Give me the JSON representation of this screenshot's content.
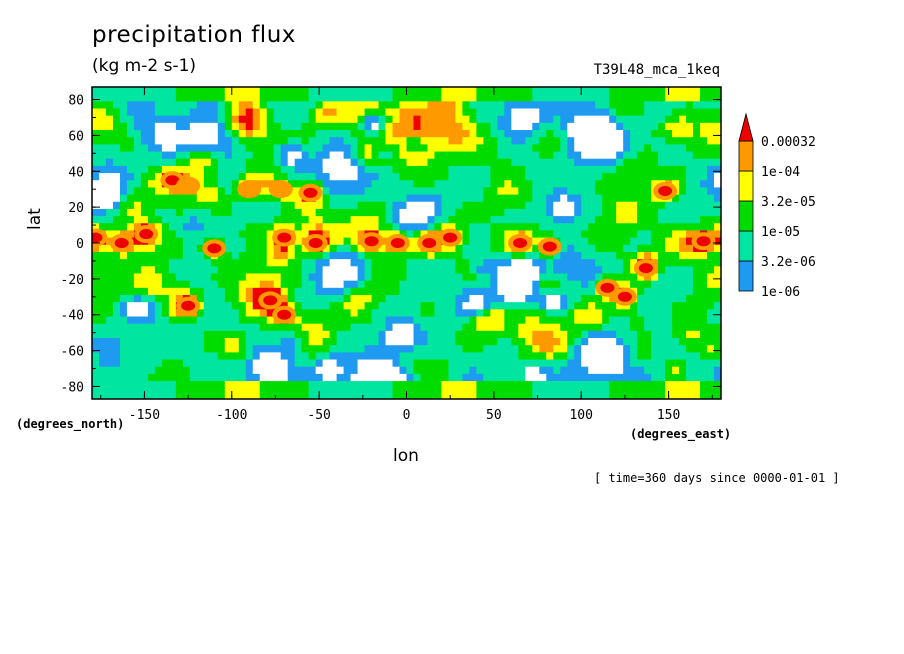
{
  "chart_data": {
    "type": "heatmap",
    "title": "precipitation flux",
    "subtitle": "(kg m-2 s-1)",
    "run_label": "T39L48_mca_1keq",
    "xlabel": "lon",
    "ylabel": "lat",
    "x_units": "(degrees_east)",
    "y_units": "(degrees_north)",
    "footnote": "[ time=360 days since 0000-01-01 ]",
    "xlim": [
      -180,
      180
    ],
    "ylim": [
      -87,
      87
    ],
    "x_ticks": [
      -150,
      -100,
      -50,
      0,
      50,
      100,
      150
    ],
    "x_tick_labels": [
      "-150",
      "-100",
      "-50",
      "0",
      "50",
      "100",
      "150"
    ],
    "y_ticks": [
      80,
      60,
      40,
      20,
      0,
      -20,
      -40,
      -60,
      -80
    ],
    "y_tick_labels": [
      "80",
      "60",
      "40",
      "20",
      "0",
      "-20",
      "-40",
      "-60",
      "-80"
    ],
    "legend": {
      "placement": "right",
      "levels": [
        "1e-06",
        "3.2e-06",
        "1e-05",
        "3.2e-05",
        "1e-04",
        "0.00032"
      ],
      "level_values": [
        1e-06,
        3.2e-06,
        1e-05,
        3.2e-05,
        0.0001,
        0.00032
      ],
      "colors": [
        "#ffffff",
        "#1e9bf0",
        "#00e6a0",
        "#00dc00",
        "#ffff00",
        "#ff9900",
        "#ee0000"
      ]
    },
    "cells": [
      {
        "lon": -178,
        "lat": 3,
        "level": 6
      },
      {
        "lon": -163,
        "lat": 0,
        "level": 6
      },
      {
        "lon": -149,
        "lat": 5,
        "level": 6
      },
      {
        "lon": -134,
        "lat": 35,
        "level": 6
      },
      {
        "lon": -125,
        "lat": 32,
        "level": 5
      },
      {
        "lon": -110,
        "lat": -3,
        "level": 6
      },
      {
        "lon": -125,
        "lat": -35,
        "level": 6
      },
      {
        "lon": -90,
        "lat": 30,
        "level": 5
      },
      {
        "lon": -72,
        "lat": 30,
        "level": 5
      },
      {
        "lon": -55,
        "lat": 28,
        "level": 6
      },
      {
        "lon": -70,
        "lat": 3,
        "level": 6
      },
      {
        "lon": -52,
        "lat": 0,
        "level": 6
      },
      {
        "lon": -78,
        "lat": -32,
        "level": 6
      },
      {
        "lon": -70,
        "lat": -40,
        "level": 6
      },
      {
        "lon": -20,
        "lat": 1,
        "level": 6
      },
      {
        "lon": -5,
        "lat": 0,
        "level": 6
      },
      {
        "lon": 13,
        "lat": 0,
        "level": 6
      },
      {
        "lon": 25,
        "lat": 3,
        "level": 6
      },
      {
        "lon": 65,
        "lat": 0,
        "level": 6
      },
      {
        "lon": 82,
        "lat": -2,
        "level": 6
      },
      {
        "lon": 115,
        "lat": -25,
        "level": 6
      },
      {
        "lon": 125,
        "lat": -30,
        "level": 6
      },
      {
        "lon": 137,
        "lat": -14,
        "level": 6
      },
      {
        "lon": 148,
        "lat": 29,
        "level": 6
      },
      {
        "lon": 170,
        "lat": 1,
        "level": 6
      }
    ]
  }
}
